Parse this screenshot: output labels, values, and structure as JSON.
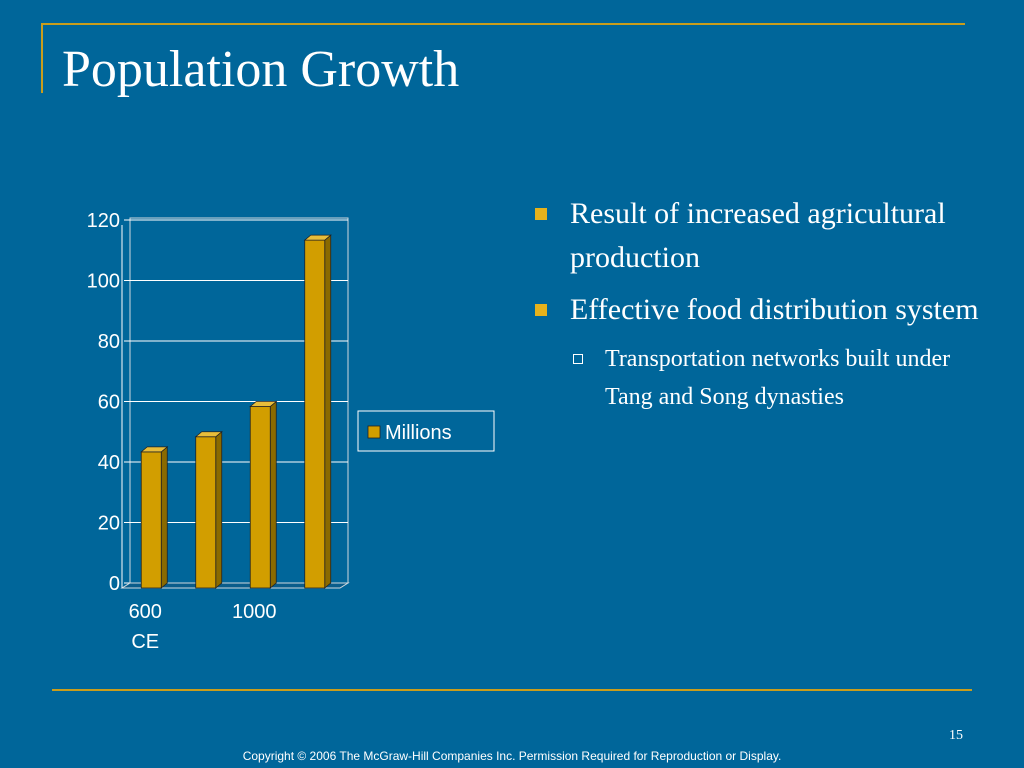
{
  "slide": {
    "title": "Population Growth",
    "page_number": "15",
    "copyright": "Copyright © 2006 The McGraw-Hill Companies Inc. Permission Required for Reproduction or Display."
  },
  "bullets": [
    {
      "text": "Result of increased agricultural production",
      "level": 1
    },
    {
      "text": "Effective food distribution system",
      "level": 1
    },
    {
      "text": "Transportation networks built under Tang and Song dynasties",
      "level": 2
    }
  ],
  "chart_data": {
    "type": "bar",
    "categories": [
      "600 CE",
      "",
      "1000",
      ""
    ],
    "series": [
      {
        "name": "Millions",
        "values": [
          45,
          50,
          60,
          115
        ],
        "color": "#d29e00"
      }
    ],
    "ylim": [
      0,
      120
    ],
    "yticks": [
      "0",
      "20",
      "40",
      "60",
      "80",
      "100",
      "120"
    ],
    "grid": true,
    "legend": "right",
    "title": "",
    "xlabel": "",
    "ylabel": ""
  },
  "colors": {
    "background": "#00669a",
    "accent": "#c99d1c",
    "bar": "#d29e00"
  }
}
